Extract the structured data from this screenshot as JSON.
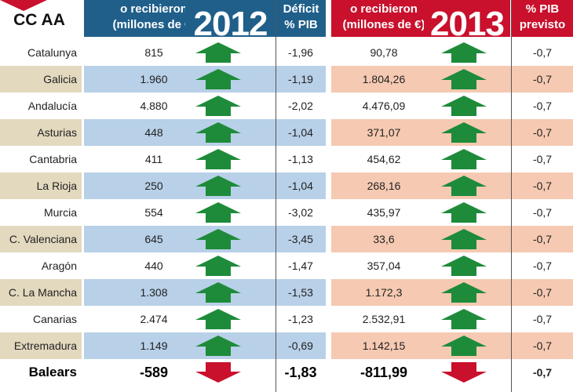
{
  "header": {
    "region_label": "CC AA",
    "col_2012_amount": [
      "o recibieron",
      "(millones de €)"
    ],
    "col_2012_year": "2012",
    "col_2012_deficit": [
      "Déficit",
      "% PIB"
    ],
    "col_2013_amount": [
      "o recibieron",
      "(millones de €)"
    ],
    "col_2013_year": "2013",
    "col_2013_deficit": [
      "% PIB",
      "previsto"
    ]
  },
  "colors": {
    "header_2012": "#1f5f8a",
    "header_2013": "#c9102c",
    "arrow_up": "#1e8b3a",
    "arrow_down": "#c9102c",
    "alt_name": "#e3d9bf",
    "alt_2012": "#b8d0e8",
    "alt_2013": "#f6c9b2"
  },
  "chart_data": {
    "type": "table",
    "columns": [
      "CC AA",
      "2012 (millones de €)",
      "2012 Déficit % PIB",
      "2013 (millones de €)",
      "2013 % PIB previsto"
    ],
    "rows": [
      {
        "region": "Catalunya",
        "v2012": "815",
        "trend2012": "up",
        "deficit2012": "-1,96",
        "v2013": "90,78",
        "trend2013": "up",
        "deficit2013": "-0,7"
      },
      {
        "region": "Galicia",
        "v2012": "1.960",
        "trend2012": "up",
        "deficit2012": "-1,19",
        "v2013": "1.804,26",
        "trend2013": "up",
        "deficit2013": "-0,7"
      },
      {
        "region": "Andalucía",
        "v2012": "4.880",
        "trend2012": "up",
        "deficit2012": "-2,02",
        "v2013": "4.476,09",
        "trend2013": "up",
        "deficit2013": "-0,7"
      },
      {
        "region": "Asturias",
        "v2012": "448",
        "trend2012": "up",
        "deficit2012": "-1,04",
        "v2013": "371,07",
        "trend2013": "up",
        "deficit2013": "-0,7"
      },
      {
        "region": "Cantabria",
        "v2012": "411",
        "trend2012": "up",
        "deficit2012": "-1,13",
        "v2013": "454,62",
        "trend2013": "up",
        "deficit2013": "-0,7"
      },
      {
        "region": "La Rioja",
        "v2012": "250",
        "trend2012": "up",
        "deficit2012": "-1,04",
        "v2013": "268,16",
        "trend2013": "up",
        "deficit2013": "-0,7"
      },
      {
        "region": "Murcia",
        "v2012": "554",
        "trend2012": "up",
        "deficit2012": "-3,02",
        "v2013": "435,97",
        "trend2013": "up",
        "deficit2013": "-0,7"
      },
      {
        "region": "C. Valenciana",
        "v2012": "645",
        "trend2012": "up",
        "deficit2012": "-3,45",
        "v2013": "33,6",
        "trend2013": "up",
        "deficit2013": "-0,7"
      },
      {
        "region": "Aragón",
        "v2012": "440",
        "trend2012": "up",
        "deficit2012": "-1,47",
        "v2013": "357,04",
        "trend2013": "up",
        "deficit2013": "-0,7"
      },
      {
        "region": "C. La Mancha",
        "v2012": "1.308",
        "trend2012": "up",
        "deficit2012": "-1,53",
        "v2013": "1.172,3",
        "trend2013": "up",
        "deficit2013": "-0,7"
      },
      {
        "region": "Canarias",
        "v2012": "2.474",
        "trend2012": "up",
        "deficit2012": "-1,23",
        "v2013": "2.532,91",
        "trend2013": "up",
        "deficit2013": "-0,7"
      },
      {
        "region": "Extremadura",
        "v2012": "1.149",
        "trend2012": "up",
        "deficit2012": "-0,69",
        "v2013": "1.142,15",
        "trend2013": "up",
        "deficit2013": "-0,7"
      },
      {
        "region": "Balears",
        "v2012": "-589",
        "trend2012": "down",
        "deficit2012": "-1,83",
        "v2013": "-811,99",
        "trend2013": "down",
        "deficit2013": "-0,7",
        "highlight": true
      }
    ]
  }
}
